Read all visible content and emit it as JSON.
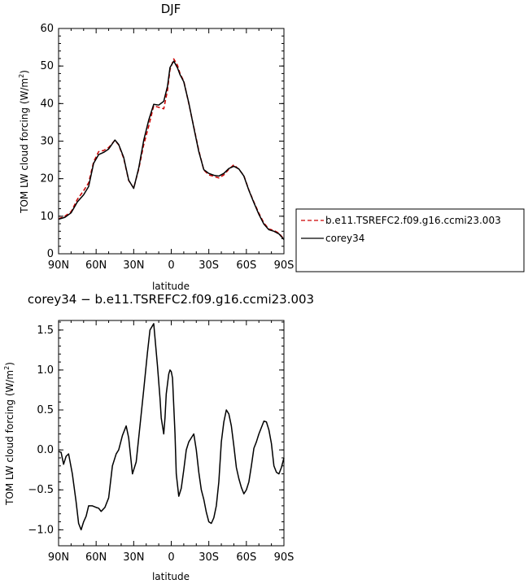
{
  "chart_data": [
    {
      "type": "line",
      "title": "DJF",
      "xlabel": "latitude",
      "ylabel_main": "TOM LW cloud forcing (W/m",
      "ylabel_sup": "2",
      "ylabel_close": ")",
      "xlim": [
        90,
        -90
      ],
      "ylim": [
        0,
        60
      ],
      "x_ticks": [
        90,
        60,
        30,
        0,
        -30,
        -60,
        -90
      ],
      "x_tick_labels": [
        "90N",
        "60N",
        "30N",
        "0",
        "30S",
        "60S",
        "90S"
      ],
      "y_ticks": [
        0,
        10,
        20,
        30,
        40,
        50,
        60
      ],
      "y_tick_labels": [
        "0",
        "10",
        "20",
        "30",
        "40",
        "50",
        "60"
      ],
      "legend": {
        "placement": "right",
        "entries": [
          "b.e11.TSREFC2.f09.g16.ccmi23.003",
          "corey34"
        ]
      },
      "series": [
        {
          "name": "b.e11.TSREFC2.f09.g16.ccmi23.003",
          "color": "#cc0000",
          "dash": "dashed",
          "x": [
            90,
            85,
            80,
            75,
            70,
            66,
            62,
            58,
            54,
            50,
            45,
            42,
            38,
            34,
            30,
            26,
            22,
            18,
            14,
            10,
            6,
            3,
            1,
            -2,
            -5,
            -7,
            -10,
            -14,
            -18,
            -22,
            -26,
            -30,
            -34,
            -38,
            -42,
            -46,
            -50,
            -54,
            -58,
            -62,
            -66,
            -70,
            -74,
            -78,
            -82,
            -86,
            -90
          ],
          "y": [
            9.3,
            10.0,
            11.2,
            14.5,
            16.8,
            18.9,
            24.5,
            27.2,
            27.5,
            28.3,
            30.2,
            29.0,
            25.4,
            19.5,
            17.5,
            22.5,
            29.0,
            34.0,
            39.4,
            39.0,
            38.6,
            43.5,
            49.0,
            51.9,
            50.2,
            48.0,
            46.0,
            40.0,
            33.8,
            27.5,
            22.3,
            21.0,
            20.6,
            20.2,
            21.0,
            22.5,
            23.7,
            22.5,
            20.8,
            17.0,
            13.8,
            10.8,
            8.2,
            6.6,
            6.2,
            5.5,
            3.9
          ]
        },
        {
          "name": "corey34",
          "color": "#000000",
          "dash": "solid",
          "x": [
            90,
            85,
            80,
            75,
            70,
            66,
            62,
            58,
            54,
            50,
            45,
            42,
            38,
            34,
            30,
            26,
            22,
            18,
            14,
            10,
            6,
            3,
            1,
            -2,
            -5,
            -7,
            -10,
            -14,
            -18,
            -22,
            -26,
            -30,
            -34,
            -38,
            -42,
            -46,
            -50,
            -54,
            -58,
            -62,
            -66,
            -70,
            -74,
            -78,
            -82,
            -86,
            -90
          ],
          "y": [
            9.2,
            9.7,
            10.9,
            13.8,
            15.7,
            17.9,
            24.1,
            26.4,
            27.0,
            27.9,
            30.3,
            29.1,
            25.7,
            19.6,
            17.4,
            22.8,
            30.2,
            35.6,
            39.8,
            39.6,
            40.6,
            44.6,
            49.6,
            51.3,
            49.5,
            47.7,
            45.8,
            40.2,
            33.6,
            27.2,
            22.4,
            21.4,
            20.9,
            20.7,
            21.4,
            22.7,
            23.3,
            22.6,
            20.7,
            16.9,
            13.6,
            10.5,
            7.9,
            6.4,
            6.0,
            5.3,
            3.8
          ]
        }
      ]
    },
    {
      "type": "line",
      "title": "corey34 − b.e11.TSREFC2.f09.g16.ccmi23.003",
      "xlabel": "latitude",
      "ylabel_main": "TOM LW cloud forcing (W/m",
      "ylabel_sup": "2",
      "ylabel_close": ")",
      "xlim": [
        90,
        -90
      ],
      "ylim": [
        -1.2,
        1.62
      ],
      "x_ticks": [
        90,
        60,
        30,
        0,
        -30,
        -60,
        -90
      ],
      "x_tick_labels": [
        "90N",
        "60N",
        "30N",
        "0",
        "30S",
        "60S",
        "90S"
      ],
      "y_ticks": [
        -1.0,
        -0.5,
        0.0,
        0.5,
        1.0,
        1.5
      ],
      "y_tick_labels": [
        "−1.0",
        "−0.5",
        "0.0",
        "0.5",
        "1.0",
        "1.5"
      ],
      "series": [
        {
          "name": "corey34",
          "color": "#000000",
          "dash": "solid",
          "x": [
            90,
            88,
            86,
            84,
            82,
            79,
            76,
            74,
            72,
            70,
            68,
            66,
            63,
            60,
            58,
            56,
            53,
            50,
            47,
            44,
            42,
            39,
            36,
            34,
            31,
            28,
            25,
            22,
            19,
            17,
            14,
            11,
            9,
            8,
            6,
            5,
            4,
            2,
            1,
            0,
            -1,
            -2,
            -3,
            -4,
            -6,
            -8,
            -10,
            -12,
            -14,
            -16,
            -18,
            -20,
            -22,
            -24,
            -26,
            -28,
            -30,
            -32,
            -34,
            -36,
            -38,
            -40,
            -42,
            -44,
            -46,
            -48,
            -50,
            -52,
            -54,
            -56,
            -58,
            -60,
            -62,
            -64,
            -66,
            -68,
            -70,
            -72,
            -74,
            -76,
            -78,
            -80,
            -82,
            -84,
            -86,
            -88,
            -90
          ],
          "y": [
            -0.02,
            -0.03,
            -0.18,
            -0.08,
            -0.05,
            -0.3,
            -0.65,
            -0.92,
            -1.0,
            -0.9,
            -0.83,
            -0.7,
            -0.7,
            -0.72,
            -0.73,
            -0.77,
            -0.72,
            -0.6,
            -0.2,
            -0.05,
            0.0,
            0.18,
            0.3,
            0.15,
            -0.3,
            -0.15,
            0.3,
            0.75,
            1.22,
            1.5,
            1.58,
            1.05,
            0.65,
            0.4,
            0.2,
            0.4,
            0.7,
            0.95,
            1.0,
            0.98,
            0.9,
            0.55,
            0.2,
            -0.3,
            -0.58,
            -0.48,
            -0.25,
            0.0,
            0.1,
            0.15,
            0.2,
            0.0,
            -0.28,
            -0.5,
            -0.62,
            -0.78,
            -0.9,
            -0.92,
            -0.85,
            -0.7,
            -0.4,
            0.1,
            0.35,
            0.5,
            0.45,
            0.3,
            0.05,
            -0.22,
            -0.36,
            -0.47,
            -0.55,
            -0.5,
            -0.4,
            -0.2,
            0.02,
            0.1,
            0.2,
            0.28,
            0.36,
            0.35,
            0.25,
            0.08,
            -0.2,
            -0.28,
            -0.3,
            -0.22,
            -0.1
          ]
        }
      ]
    }
  ]
}
